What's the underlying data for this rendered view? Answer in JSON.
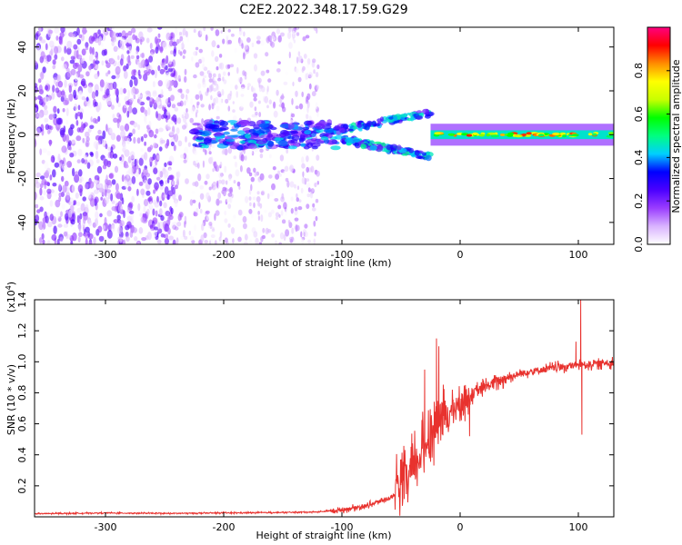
{
  "figure_title": "C2E2.2022.348.17.59.G29",
  "chart_data": [
    {
      "type": "heatmap",
      "xlabel": "Height of straight line (km)",
      "ylabel": "Frequency (Hz)",
      "xlim": [
        -360,
        130
      ],
      "ylim": [
        -50,
        49
      ],
      "x_ticks": [
        -300,
        -200,
        -100,
        0,
        100
      ],
      "y_ticks": [
        -40,
        -20,
        0,
        20,
        40
      ],
      "colorbar": {
        "label": "Normalized spectral amplitude",
        "range": [
          0.0,
          1.0
        ],
        "ticks": [
          0.0,
          0.2,
          0.4,
          0.6,
          0.8
        ],
        "colors": [
          "#ffffff",
          "#d9b3ff",
          "#9a3dff",
          "#4b00ff",
          "#0000ff",
          "#00cfff",
          "#00ff80",
          "#00ff00",
          "#c8ff00",
          "#ffff00",
          "#ff8c00",
          "#ff0000",
          "#ff0080"
        ]
      },
      "features": [
        {
          "x_range": [
            -360,
            -240
          ],
          "freq_range": [
            -50,
            49
          ],
          "amplitude": [
            0.0,
            0.25
          ]
        },
        {
          "x_range": [
            -240,
            -120
          ],
          "freq_range": [
            -50,
            49
          ],
          "amplitude": [
            0.0,
            0.15
          ]
        },
        {
          "x_range": [
            -225,
            -100
          ],
          "freq_range": [
            -6,
            6
          ],
          "amplitude": [
            0.15,
            0.45
          ]
        },
        {
          "x_range": [
            -100,
            -25
          ],
          "freq_range": [
            -16,
            12
          ],
          "amplitude": [
            0.2,
            0.5
          ]
        },
        {
          "x_range": [
            -25,
            130
          ],
          "freq_range": [
            -2,
            2
          ],
          "amplitude": [
            0.5,
            0.9
          ]
        }
      ]
    },
    {
      "type": "line",
      "xlabel": "Height of straight line (km)",
      "ylabel": "SNR (10 * v/v)",
      "y_multiplier": "(x10",
      "y_multiplier_exp": "4",
      "y_multiplier_close": ")",
      "xlim": [
        -360,
        130
      ],
      "ylim": [
        0,
        14000
      ],
      "x_ticks": [
        -300,
        -200,
        -100,
        0,
        100
      ],
      "y_ticks": [
        2000,
        4000,
        6000,
        8000,
        10000,
        12000,
        14000
      ],
      "y_tick_labels": [
        "0.2",
        "0.4",
        "0.6",
        "0.8",
        "1.0",
        "1.2",
        "1.4"
      ],
      "color": "#e8322e",
      "series": [
        {
          "x": [
            -360,
            -300,
            -250,
            -200,
            -150,
            -120,
            -100,
            -80,
            -60,
            -50,
            -45,
            -40,
            -35,
            -30,
            -25,
            -20,
            -15,
            -10,
            -5,
            0,
            10,
            20,
            30,
            40,
            50,
            60,
            70,
            80,
            90,
            100,
            110,
            120,
            130
          ],
          "values": [
            200,
            250,
            220,
            250,
            280,
            320,
            450,
            700,
            1200,
            1700,
            2300,
            3000,
            3800,
            4500,
            5500,
            6000,
            6300,
            6600,
            7000,
            7300,
            7900,
            8300,
            8700,
            9000,
            9200,
            9400,
            9500,
            9600,
            9700,
            9800,
            9850,
            9900,
            9950
          ]
        }
      ],
      "spikes": [
        {
          "x": -20,
          "value": 11500
        },
        {
          "x": -18,
          "value": 11000
        },
        {
          "x": -30,
          "value": 9500
        },
        {
          "x": 98,
          "value": 11300
        },
        {
          "x": 102,
          "value": 14000
        },
        {
          "x": 103,
          "value": 5300
        },
        {
          "x": 8,
          "value": 5200
        }
      ]
    }
  ]
}
